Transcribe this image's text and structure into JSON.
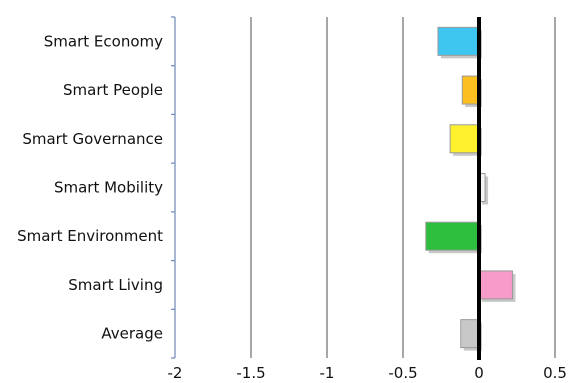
{
  "chart_data": {
    "type": "bar",
    "orientation": "horizontal",
    "categories": [
      "Smart Economy",
      "Smart People",
      "Smart Governance",
      "Smart Mobility",
      "Smart Environment",
      "Smart Living",
      "Average"
    ],
    "values": [
      -0.27,
      -0.11,
      -0.19,
      0.04,
      -0.35,
      0.22,
      -0.12
    ],
    "colors": [
      "#3fc6f0",
      "#fcbf22",
      "#fff02e",
      "#f4f4f4",
      "#2fbf3f",
      "#f79bc8",
      "#c8c8c8"
    ],
    "xlim": [
      -2,
      0.5
    ],
    "xticks": [
      -2,
      -1.5,
      -1,
      -0.5,
      0,
      0.5
    ],
    "xtick_labels": [
      "-2",
      "-1.5",
      "-1",
      "-0.5",
      "0",
      "0.5"
    ],
    "grid": true,
    "title": "",
    "xlabel": "",
    "ylabel": ""
  }
}
